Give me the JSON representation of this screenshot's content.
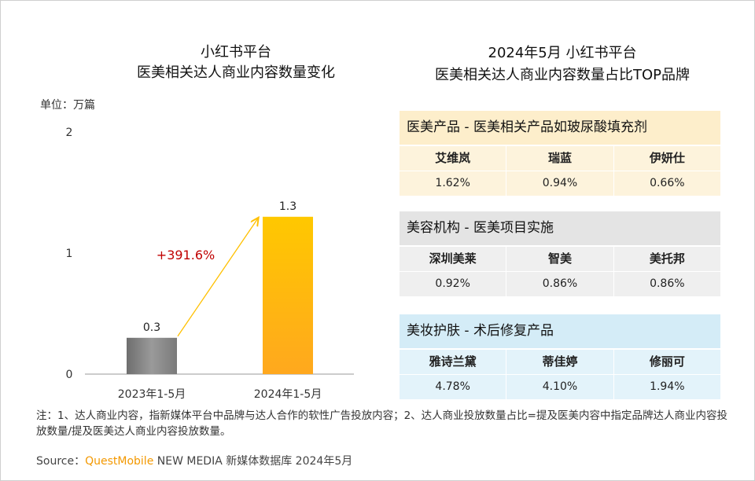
{
  "left_title": {
    "line1": "小红书平台",
    "line2": "医美相关达人商业内容数量变化"
  },
  "unit_label": "单位：万篇",
  "chart_data": {
    "type": "bar",
    "title": "小红书平台 医美相关达人商业内容数量变化",
    "ylabel": "单位：万篇",
    "categories": [
      "2023年1-5月",
      "2024年1-5月"
    ],
    "values": [
      0.3,
      1.3
    ],
    "value_labels": [
      "0.3",
      "1.3"
    ],
    "ylim": [
      0,
      2
    ],
    "yticks": [
      "0",
      "1",
      "2"
    ],
    "growth_label": "+391.6%",
    "colors": {
      "bar_2023": "#8a8a8a",
      "bar_2024": "#ffb000",
      "growth": "#c00000",
      "arrow": "#ffc000"
    },
    "grid": false
  },
  "right_title": {
    "line1": "2024年5月 小红书平台",
    "line2": "医美相关达人商业内容数量占比TOP品牌"
  },
  "tables": [
    {
      "header": "医美产品 - 医美相关产品如玻尿酸填充剂",
      "header_bg": "#fdeecb",
      "row_bg": "#fdf3dc",
      "brands": [
        "艾维岚",
        "瑞蓝",
        "伊妍仕"
      ],
      "shares": [
        "1.62%",
        "0.94%",
        "0.66%"
      ]
    },
    {
      "header": "美容机构 - 医美项目实施",
      "header_bg": "#e4e4e4",
      "row_bg": "#efefef",
      "brands": [
        "深圳美莱",
        "智美",
        "美托邦"
      ],
      "shares": [
        "0.92%",
        "0.86%",
        "0.86%"
      ]
    },
    {
      "header": "美妆护肤 - 术后修复产品",
      "header_bg": "#d4ecf7",
      "row_bg": "#e3f3fa",
      "brands": [
        "雅诗兰黛",
        "蒂佳婷",
        "修丽可"
      ],
      "shares": [
        "4.78%",
        "4.10%",
        "1.94%"
      ]
    }
  ],
  "note": "注：1、达人商业内容，指新媒体平台中品牌与达人合作的软性广告投放内容；2、达人商业投放数量占比=提及医美内容中指定品牌达人商业内容投放数量/提及医美达人商业内容投放数量。",
  "source": {
    "prefix": "Source：",
    "brand": "QuestMobile",
    "suffix": " NEW MEDIA 新媒体数据库 2024年5月"
  }
}
